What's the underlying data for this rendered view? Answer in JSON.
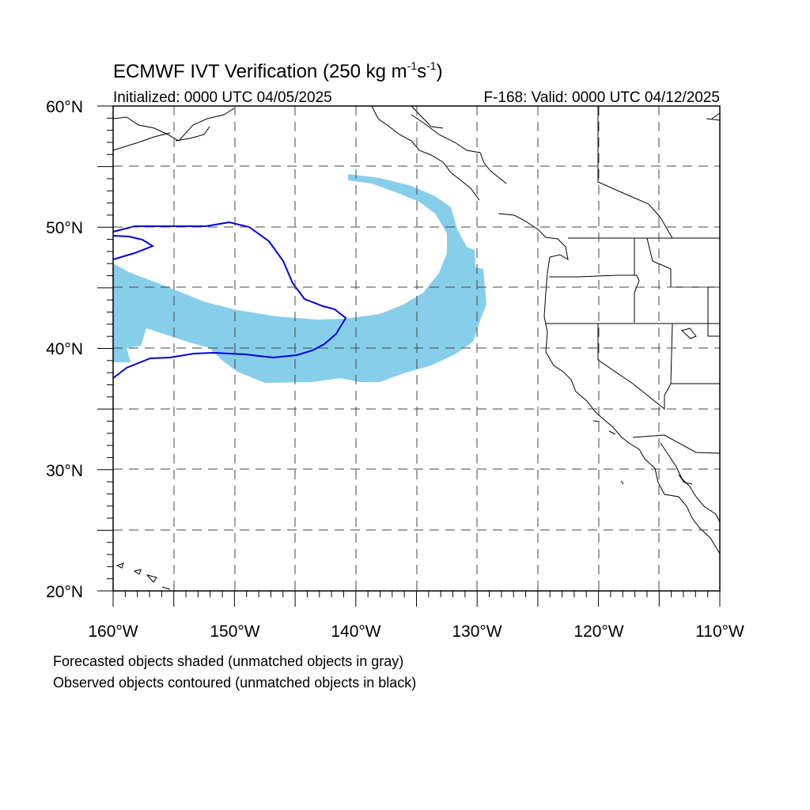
{
  "title": {
    "main": "ECMWF IVT Verification (250 kg m",
    "sup1": "-1",
    "mid": "s",
    "sup2": "-1",
    "end": ")"
  },
  "initialized": "Initialized: 0000 UTC 04/05/2025",
  "valid": "F-168: Valid: 0000 UTC 04/12/2025",
  "lat_labels": [
    "60°N",
    "50°N",
    "40°N",
    "30°N",
    "20°N"
  ],
  "lon_labels": [
    "160°W",
    "150°W",
    "140°W",
    "130°W",
    "120°W",
    "110°W"
  ],
  "notes": {
    "forecast": "Forecasted objects shaded (unmatched objects in gray)",
    "observed": "Observed objects contoured (unmatched objects in black)"
  },
  "map": {
    "lon_range": [
      -160,
      -110
    ],
    "lat_range": [
      20,
      60
    ],
    "grid_lon": [
      -155,
      -150,
      -145,
      -140,
      -135,
      -130,
      -125,
      -120,
      -115
    ],
    "grid_lat": [
      25,
      30,
      35,
      40,
      45,
      50,
      55
    ],
    "forecast_color": "#87ceeb",
    "observed_color": "#0000dd"
  }
}
